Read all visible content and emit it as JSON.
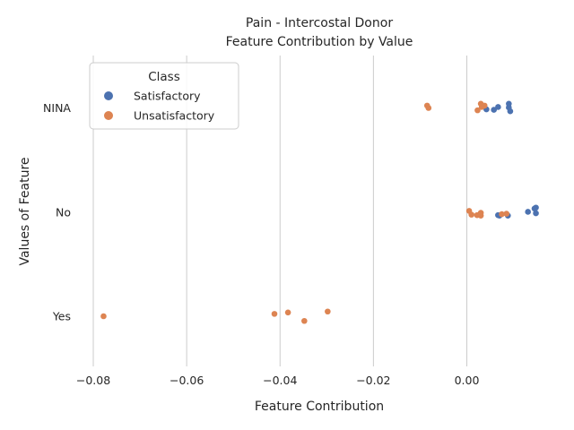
{
  "chart_data": {
    "type": "scatter",
    "title": "Pain - Intercostal Donor",
    "subtitle": "Feature Contribution by Value",
    "xlabel": "Feature Contribution",
    "ylabel": "Values of Feature",
    "xlim": [
      -0.0825,
      0.0195
    ],
    "x_ticks": [
      -0.08,
      -0.06,
      -0.04,
      -0.02,
      0.0
    ],
    "x_tick_labels": [
      "−0.08",
      "−0.06",
      "−0.04",
      "−0.02",
      "0.00"
    ],
    "categories": [
      "NINA",
      "No",
      "Yes"
    ],
    "grid": "vertical",
    "legend": {
      "title": "Class",
      "position": "top-left"
    },
    "series": [
      {
        "name": "Satisfactory",
        "color": "#4c72b0",
        "points": [
          {
            "x": 0.009,
            "cat": "NINA",
            "jitter": 0.09
          },
          {
            "x": 0.0067,
            "cat": "NINA",
            "jitter": 0.02
          },
          {
            "x": 0.009,
            "cat": "NINA",
            "jitter": 0.01
          },
          {
            "x": 0.0042,
            "cat": "NINA",
            "jitter": -0.03
          },
          {
            "x": 0.0058,
            "cat": "NINA",
            "jitter": -0.04
          },
          {
            "x": 0.0093,
            "cat": "NINA",
            "jitter": -0.07
          },
          {
            "x": 0.0148,
            "cat": "No",
            "jitter": 0.1
          },
          {
            "x": 0.0145,
            "cat": "No",
            "jitter": 0.08
          },
          {
            "x": 0.0131,
            "cat": "No",
            "jitter": 0.01
          },
          {
            "x": 0.0148,
            "cat": "No",
            "jitter": -0.02
          },
          {
            "x": 0.0067,
            "cat": "No",
            "jitter": -0.06
          },
          {
            "x": 0.007,
            "cat": "No",
            "jitter": -0.07
          },
          {
            "x": 0.0088,
            "cat": "No",
            "jitter": -0.07
          }
        ]
      },
      {
        "name": "Unsatisfactory",
        "color": "#dd8452",
        "points": [
          {
            "x": 0.003,
            "cat": "NINA",
            "jitter": 0.09
          },
          {
            "x": 0.0038,
            "cat": "NINA",
            "jitter": 0.05
          },
          {
            "x": -0.0085,
            "cat": "NINA",
            "jitter": 0.05
          },
          {
            "x": 0.0032,
            "cat": "NINA",
            "jitter": 0.02
          },
          {
            "x": -0.0082,
            "cat": "NINA",
            "jitter": 0.0
          },
          {
            "x": 0.0023,
            "cat": "NINA",
            "jitter": -0.05
          },
          {
            "x": 0.0005,
            "cat": "No",
            "jitter": 0.03
          },
          {
            "x": 0.003,
            "cat": "No",
            "jitter": -0.01
          },
          {
            "x": 0.0085,
            "cat": "No",
            "jitter": -0.03
          },
          {
            "x": 0.0075,
            "cat": "No",
            "jitter": -0.04
          },
          {
            "x": 0.001,
            "cat": "No",
            "jitter": -0.05
          },
          {
            "x": 0.0022,
            "cat": "No",
            "jitter": -0.06
          },
          {
            "x": 0.003,
            "cat": "No",
            "jitter": -0.07
          },
          {
            "x": -0.0298,
            "cat": "Yes",
            "jitter": 0.1
          },
          {
            "x": -0.0383,
            "cat": "Yes",
            "jitter": 0.08
          },
          {
            "x": -0.0412,
            "cat": "Yes",
            "jitter": 0.05
          },
          {
            "x": -0.0778,
            "cat": "Yes",
            "jitter": 0.0
          },
          {
            "x": -0.0348,
            "cat": "Yes",
            "jitter": -0.1
          }
        ]
      }
    ]
  }
}
